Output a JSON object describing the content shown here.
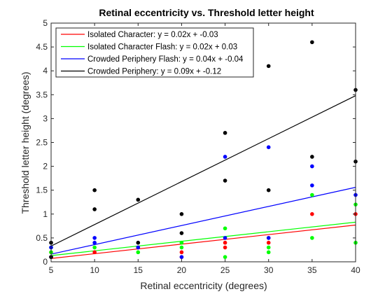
{
  "chart_data": {
    "type": "scatter",
    "title": "Retinal eccentricity vs. Threshold letter height",
    "xlabel": "Retinal eccentricity (degrees)",
    "ylabel": "Threshold letter height (degrees)",
    "xlim": [
      5,
      40
    ],
    "ylim": [
      0,
      5
    ],
    "xticks": [
      5,
      10,
      15,
      20,
      25,
      30,
      35,
      40
    ],
    "yticks": [
      0,
      0.5,
      1,
      1.5,
      2,
      2.5,
      3,
      3.5,
      4,
      4.5,
      5
    ],
    "xtick_labels": [
      "5",
      "10",
      "15",
      "20",
      "25",
      "30",
      "35",
      "40"
    ],
    "ytick_labels": [
      "0",
      "0.5",
      "1",
      "1.5",
      "2",
      "2.5",
      "3",
      "3.5",
      "4",
      "4.5",
      "5"
    ],
    "grid": false,
    "legend_position": "top-left",
    "series": [
      {
        "name": "Isolated Character: y = 0.02x + -0.03",
        "color": "#ff0000",
        "fit": {
          "slope": 0.02,
          "intercept": -0.03
        },
        "points": [
          [
            5,
            0.1
          ],
          [
            5,
            0.2
          ],
          [
            10,
            0.2
          ],
          [
            15,
            0.3
          ],
          [
            20,
            0.2
          ],
          [
            20,
            0.1
          ],
          [
            25,
            0.3
          ],
          [
            25,
            0.4
          ],
          [
            30,
            0.4
          ],
          [
            30,
            0.5
          ],
          [
            35,
            1.0
          ],
          [
            40,
            1.0
          ]
        ]
      },
      {
        "name": "Isolated Character Flash: y = 0.02x + 0.03",
        "color": "#00ff00",
        "fit": {
          "slope": 0.02,
          "intercept": 0.03
        },
        "points": [
          [
            5,
            0.2
          ],
          [
            5,
            0.3
          ],
          [
            10,
            0.3
          ],
          [
            15,
            0.2
          ],
          [
            20,
            0.3
          ],
          [
            20,
            0.4
          ],
          [
            25,
            0.1
          ],
          [
            25,
            0.7
          ],
          [
            30,
            0.2
          ],
          [
            30,
            0.3
          ],
          [
            35,
            0.5
          ],
          [
            35,
            1.4
          ],
          [
            40,
            0.4
          ],
          [
            40,
            1.2
          ]
        ]
      },
      {
        "name": "Crowded Periphery Flash: y = 0.04x + -0.04",
        "color": "#0000ff",
        "fit": {
          "slope": 0.04,
          "intercept": -0.04
        },
        "points": [
          [
            5,
            0.1
          ],
          [
            5,
            0.3
          ],
          [
            10,
            0.4
          ],
          [
            10,
            0.5
          ],
          [
            15,
            0.3
          ],
          [
            20,
            0.1
          ],
          [
            25,
            0.5
          ],
          [
            25,
            2.2
          ],
          [
            30,
            0.5
          ],
          [
            30,
            2.4
          ],
          [
            35,
            1.6
          ],
          [
            35,
            2.0
          ],
          [
            40,
            1.4
          ]
        ]
      },
      {
        "name": "Crowded Periphery: y = 0.09x + -0.12",
        "color": "#000000",
        "fit": {
          "slope": 0.09,
          "intercept": -0.12
        },
        "points": [
          [
            5,
            0.1
          ],
          [
            5,
            0.4
          ],
          [
            10,
            1.1
          ],
          [
            10,
            1.5
          ],
          [
            15,
            0.4
          ],
          [
            15,
            1.3
          ],
          [
            20,
            0.6
          ],
          [
            20,
            1.0
          ],
          [
            25,
            1.7
          ],
          [
            25,
            2.7
          ],
          [
            30,
            1.5
          ],
          [
            30,
            4.1
          ],
          [
            35,
            2.2
          ],
          [
            35,
            4.6
          ],
          [
            40,
            2.1
          ],
          [
            40,
            3.6
          ]
        ]
      }
    ]
  }
}
